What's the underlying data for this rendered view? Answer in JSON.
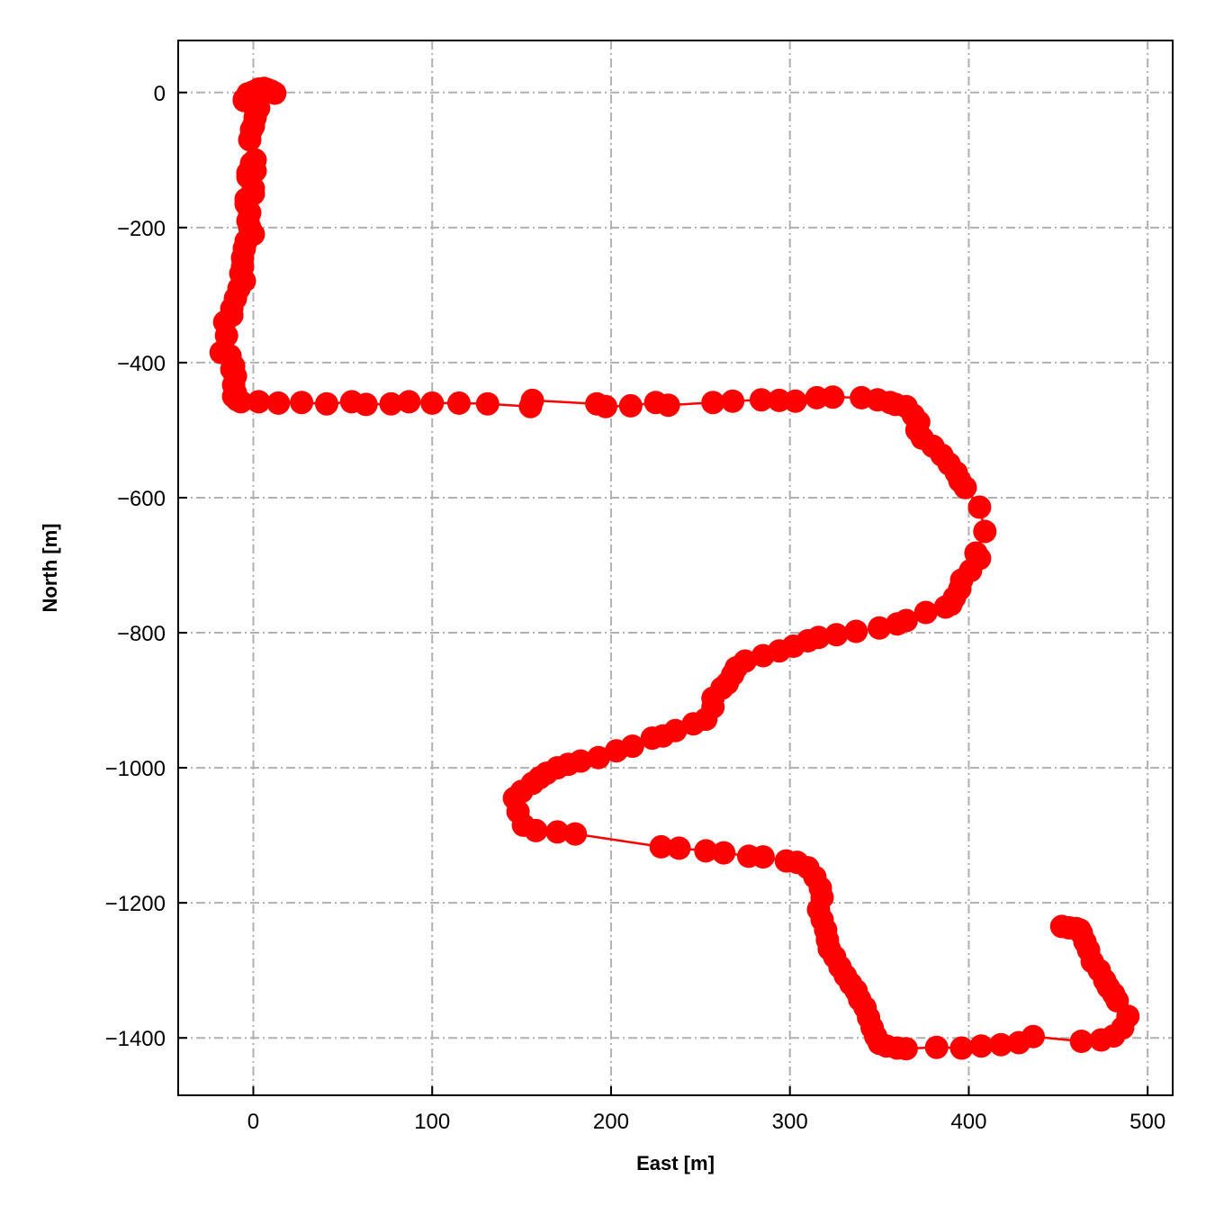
{
  "chart_data": {
    "type": "scatter",
    "title": "",
    "xlabel": "East [m]",
    "ylabel": "North [m]",
    "xlim": [
      -42,
      514
    ],
    "ylim": [
      -1485,
      77
    ],
    "xticks": [
      0,
      100,
      200,
      300,
      400,
      500
    ],
    "yticks": [
      0,
      -200,
      -400,
      -600,
      -800,
      -1000,
      -1200,
      -1400
    ],
    "grid": true,
    "grid_style": "dash-dot",
    "legend": "none",
    "colors": {
      "series": "#ff0000",
      "grid": "#b0b0b0",
      "axes": "#000000"
    },
    "series": [
      {
        "connected": true,
        "marker": "circle",
        "x": [
          12,
          10,
          8,
          6,
          3,
          0,
          -3,
          -5,
          -5,
          2,
          0,
          3,
          1,
          0,
          -1,
          -2,
          1,
          -1,
          1,
          -3,
          -3,
          0,
          0,
          -4,
          -4,
          -2,
          -3,
          -2,
          0,
          -4,
          -5,
          -6,
          -6,
          -7,
          -5,
          -8,
          -10,
          -12,
          -12,
          -16,
          -15,
          -18,
          -13,
          -11,
          -12,
          -10,
          -11,
          -10,
          -11,
          -9,
          -7,
          3,
          14,
          27,
          41,
          55,
          63,
          77,
          87,
          100,
          115,
          131,
          155,
          156,
          192,
          197,
          211,
          225,
          232,
          257,
          268,
          284,
          294,
          303,
          315,
          324,
          340,
          349,
          356,
          359,
          365,
          369,
          372,
          371,
          374,
          380,
          385,
          389,
          393,
          395,
          398,
          406,
          409,
          404,
          406,
          401,
          396,
          395,
          392,
          390,
          387,
          376,
          365,
          360,
          350,
          337,
          326,
          316,
          310,
          302,
          294,
          285,
          275,
          270,
          268,
          265,
          262,
          257,
          257,
          253,
          246,
          236,
          229,
          223,
          212,
          203,
          193,
          183,
          176,
          170,
          164,
          160,
          156,
          150,
          146,
          148,
          151,
          158,
          170,
          180,
          228,
          238,
          253,
          263,
          277,
          285,
          298,
          304,
          310,
          314,
          317,
          318,
          316,
          318,
          320,
          321,
          322,
          325,
          328,
          331,
          334,
          337,
          339,
          342,
          344,
          346,
          348,
          350,
          354,
          360,
          365,
          382,
          396,
          407,
          418,
          428,
          436,
          463,
          474,
          481,
          486,
          489,
          483,
          481,
          478,
          476,
          473,
          469,
          467,
          465,
          463,
          462,
          460,
          456,
          452
        ],
        "y": [
          -1,
          2,
          4,
          6,
          5,
          1,
          -2,
          -10,
          -12,
          -12,
          -19,
          -23,
          -37,
          -50,
          -55,
          -70,
          -100,
          -105,
          -116,
          -119,
          -125,
          -142,
          -150,
          -158,
          -165,
          -178,
          -190,
          -200,
          -210,
          -220,
          -231,
          -245,
          -258,
          -268,
          -279,
          -290,
          -305,
          -320,
          -330,
          -340,
          -360,
          -385,
          -390,
          -405,
          -410,
          -420,
          -433,
          -445,
          -450,
          -455,
          -458,
          -458,
          -460,
          -459,
          -461,
          -458,
          -462,
          -461,
          -458,
          -460,
          -460,
          -461,
          -465,
          -456,
          -461,
          -465,
          -464,
          -459,
          -463,
          -459,
          -457,
          -455,
          -456,
          -457,
          -452,
          -451,
          -452,
          -455,
          -459,
          -462,
          -465,
          -478,
          -488,
          -500,
          -512,
          -524,
          -537,
          -550,
          -563,
          -575,
          -585,
          -614,
          -650,
          -682,
          -690,
          -708,
          -722,
          -735,
          -748,
          -758,
          -762,
          -770,
          -782,
          -787,
          -793,
          -798,
          -803,
          -807,
          -812,
          -820,
          -827,
          -834,
          -842,
          -852,
          -862,
          -875,
          -882,
          -897,
          -910,
          -928,
          -935,
          -945,
          -953,
          -956,
          -968,
          -975,
          -985,
          -990,
          -995,
          -1000,
          -1008,
          -1015,
          -1023,
          -1035,
          -1045,
          -1065,
          -1085,
          -1093,
          -1095,
          -1098,
          -1117,
          -1119,
          -1123,
          -1126,
          -1131,
          -1132,
          -1138,
          -1140,
          -1148,
          -1162,
          -1178,
          -1192,
          -1210,
          -1225,
          -1240,
          -1255,
          -1268,
          -1280,
          -1295,
          -1308,
          -1320,
          -1330,
          -1343,
          -1355,
          -1370,
          -1385,
          -1398,
          -1408,
          -1412,
          -1415,
          -1416,
          -1414,
          -1415,
          -1412,
          -1410,
          -1407,
          -1398,
          -1405,
          -1403,
          -1397,
          -1385,
          -1368,
          -1345,
          -1335,
          -1325,
          -1315,
          -1300,
          -1287,
          -1270,
          -1258,
          -1245,
          -1240,
          -1238,
          -1237,
          -1235
        ]
      }
    ]
  }
}
